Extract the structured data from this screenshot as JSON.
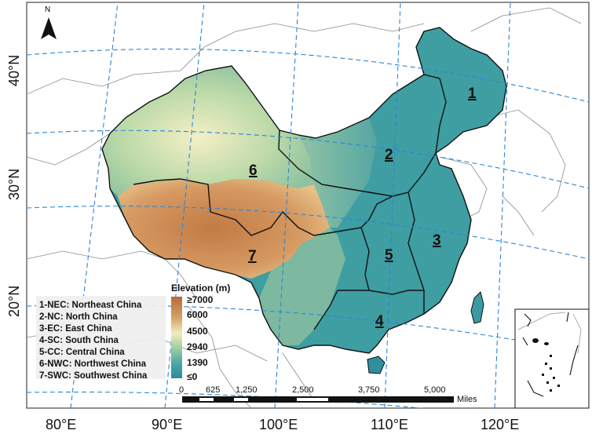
{
  "north_arrow": {
    "label": "N",
    "icon": "north-arrow-icon"
  },
  "lat_labels": [
    "40°N",
    "30°N",
    "20°N"
  ],
  "lon_labels": [
    "80°E",
    "90°E",
    "100°E",
    "110°E",
    "120°E"
  ],
  "regions": [
    {
      "number": "1",
      "code": "NEC",
      "name": "Northeast China",
      "label": "1-NEC: Northeast China"
    },
    {
      "number": "2",
      "code": "NC",
      "name": "North China",
      "label": "2-NC: North China"
    },
    {
      "number": "3",
      "code": "EC",
      "name": "East China",
      "label": "3-EC: East China"
    },
    {
      "number": "4",
      "code": "SC",
      "name": "South China",
      "label": "4-SC: South China"
    },
    {
      "number": "5",
      "code": "CC",
      "name": "Central China",
      "label": "5-CC: Central China"
    },
    {
      "number": "6",
      "code": "NWC",
      "name": "Northwest China",
      "label": "6-NWC: Northwest China"
    },
    {
      "number": "7",
      "code": "SWC",
      "name": "Southwest China",
      "label": "7-SWC: Southwest China"
    }
  ],
  "elevation_legend": {
    "title": "Elevation (m)",
    "ticks": [
      "≥7000",
      "6000",
      "4500",
      "2940",
      "1390",
      "≤0"
    ],
    "colors": [
      "#b8693a",
      "#d4a064",
      "#f2ecbe",
      "#a7cfa0",
      "#4aa7a4",
      "#2b8b9a"
    ]
  },
  "scale_bar": {
    "ticks": [
      "0",
      "625",
      "1,250",
      "2,500",
      "3,750",
      "5,000"
    ],
    "unit": "Miles"
  },
  "colors": {
    "grid": "#2a86d6",
    "boundary": "#111111",
    "land": "#ffffff",
    "lowland": "#2f8f9e",
    "plateau": "#c98a55"
  }
}
